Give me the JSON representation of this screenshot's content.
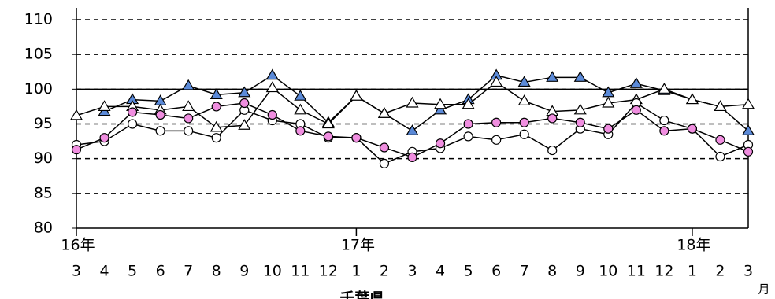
{
  "chart_data": {
    "type": "line",
    "categories": [
      "3",
      "4",
      "5",
      "6",
      "7",
      "8",
      "9",
      "10",
      "11",
      "12",
      "1",
      "2",
      "3",
      "4",
      "5",
      "6",
      "7",
      "8",
      "9",
      "10",
      "11",
      "12",
      "1",
      "2",
      "3"
    ],
    "year_labels": [
      "16年",
      null,
      null,
      null,
      null,
      null,
      null,
      null,
      null,
      null,
      "17年",
      null,
      null,
      null,
      null,
      null,
      null,
      null,
      null,
      null,
      null,
      null,
      "18年",
      null,
      null
    ],
    "xlabel": "千葉県",
    "unit_label": "月",
    "ylim": [
      80,
      110
    ],
    "yticks": [
      80,
      85,
      90,
      95,
      100,
      105,
      110
    ],
    "grid": true,
    "reference_line": 100,
    "series": [
      {
        "color": "#5b8ad8",
        "marker": "triangle",
        "filled": true,
        "values": [
          null,
          96.8,
          98.5,
          98.3,
          100.5,
          99.2,
          99.5,
          102,
          99,
          95.2,
          99,
          96.5,
          94,
          97,
          98.5,
          102,
          101,
          101.7,
          101.7,
          99.5,
          100.8,
          99.8,
          98.5,
          97.5,
          94
        ]
      },
      {
        "color": "#ffffff",
        "marker": "triangle",
        "filled": false,
        "values": [
          96.2,
          97.5,
          97.5,
          97,
          97.5,
          94.5,
          94.8,
          100.2,
          97,
          95,
          99,
          96.5,
          98,
          97.8,
          97.8,
          101,
          98.3,
          96.8,
          97,
          98,
          98.5,
          100,
          98.5,
          97.5,
          97.8
        ]
      },
      {
        "color": "#ffffff",
        "marker": "circle",
        "filled": false,
        "values": [
          92,
          92.5,
          95,
          94,
          94,
          93,
          97,
          95.5,
          95,
          93,
          93,
          89.3,
          91,
          91.5,
          93.2,
          92.7,
          93.5,
          91.2,
          94.3,
          93.5,
          98,
          95.5,
          94.3,
          90.3,
          92
        ]
      },
      {
        "color": "#f08ee0",
        "marker": "circle",
        "filled": true,
        "values": [
          91.3,
          93,
          96.7,
          96.3,
          95.8,
          97.5,
          98,
          96.3,
          94,
          93.2,
          93,
          91.6,
          90.2,
          92.2,
          95,
          95.2,
          95.2,
          95.8,
          95.2,
          94.3,
          97,
          94,
          94.3,
          92.7,
          91
        ]
      }
    ]
  }
}
